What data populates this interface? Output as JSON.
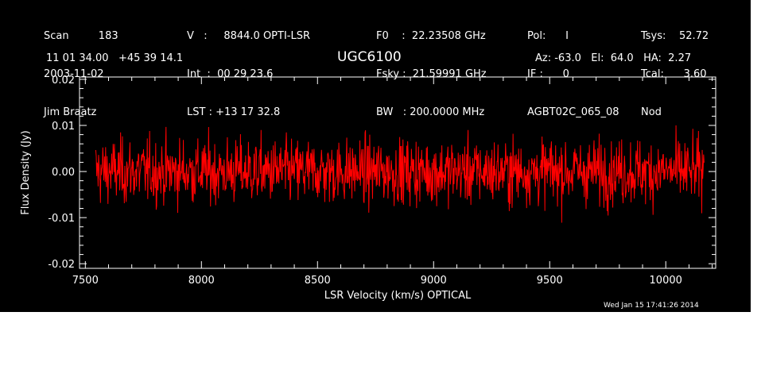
{
  "header": {
    "col1": {
      "l1": "Scan         183",
      "l2": "2003-11-02",
      "l3": "Jim Braatz"
    },
    "col2": {
      "l1": "V   :     8844.0 OPTI-LSR",
      "l2": "Int  :  00 29 23.6",
      "l3": "LST : +13 17 32.8"
    },
    "col3": {
      "l1": "F0    :  22.23508 GHz",
      "l2": "Fsky :  21.59991 GHz",
      "l3": "BW   : 200.0000 MHz"
    },
    "col4": {
      "l1": "Pol:      I",
      "l2": "IF :      0",
      "l3": "AGBT02C_065_08"
    },
    "col5": {
      "l1": "Tsys:    52.72",
      "l2": "Tcal:      3.60",
      "l3": "Nod"
    },
    "coords": "11 01 34.00   +45 39 14.1",
    "source": "UGC6100",
    "pointing": "Az: -63.0   El:  64.0   HA:  2.27",
    "timestamp": "Wed Jan 15 17:41:26 2014"
  },
  "chart_data": {
    "type": "line",
    "xlabel": "LSR Velocity (km/s) OPTICAL",
    "ylabel": "Flux Density (Jy)",
    "xlim": [
      7475,
      10215
    ],
    "ylim": [
      -0.021,
      0.0205
    ],
    "x_ticks": [
      7500,
      8000,
      8500,
      9000,
      9500,
      10000
    ],
    "x_tick_labels": [
      "7500",
      "8000",
      "8500",
      "9000",
      "9500",
      "10000"
    ],
    "y_ticks": [
      -0.02,
      -0.01,
      0.0,
      0.01,
      0.02
    ],
    "y_tick_labels": [
      "-0.02",
      "-0.01",
      "0.00",
      "0.01",
      "0.02"
    ],
    "series": [
      {
        "x_start": 7545,
        "x_end": 10165,
        "n_points": 1300,
        "mean": 0.0,
        "rms": 0.0035,
        "y_min": -0.014,
        "y_max": 0.0125,
        "color": "#ff0000"
      }
    ],
    "background": "#000000",
    "axis_color": "#ffffff"
  }
}
